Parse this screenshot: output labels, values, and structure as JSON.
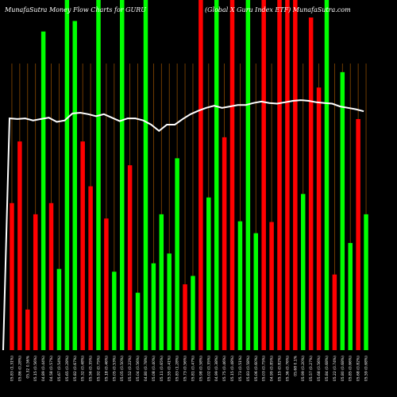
{
  "header": {
    "left_title": "MunafaSutra  Money Flow  Charts for GURU",
    "right_title": "(Global X  Guru  Index ETF) MunafaSutra.com"
  },
  "colors": {
    "background": "#000000",
    "up": "#00ff00",
    "down": "#ff0000",
    "vertical_line": "#8a4a00",
    "price_line": "#ffffff"
  },
  "chart_data": {
    "type": "bar",
    "title": "MunafaSutra  Money Flow  Charts for GURU",
    "subtitle": "(Global X  Guru  Index ETF) MunafaSutra.com",
    "ylim": [
      0,
      100
    ],
    "categories": [
      "05.83 (1.31%)",
      "05.86 (0.28%)",
      "05.32 0.56%",
      "05.15 (0.56%)",
      "04.89 (0.44%)",
      "04.58 (0.57%)",
      "05.67 (0.54%)",
      "05.65 (0.28%)",
      "05.82 (0.67%)",
      "05.32 (0.48%)",
      "05.56 (0.35%)",
      "05.92 (0.75%)",
      "05.18 (0.46%)",
      "05.05 (0.53%)",
      "05.05 (0.50%)",
      "05.52 (0.22%)",
      "05.04 (0.56%)",
      "04.80 (0.78%)",
      "05.08 (0.40%)",
      "05.11 (0.65%)",
      "05.55 (0.41%)",
      "05.83 (1.28%)",
      "05.73 (0.56%)",
      "05.81 (0.47%)",
      "05.98 (0.58%)",
      "05.02 (0.35%)",
      "04.99 (0.38%)",
      "05.75 (0.46%)",
      "05.15 (0.48%)",
      "05.73 (0.51%)",
      "05.83 (0.58%)",
      "05.06 (0.60%)",
      "05.03 (0.75%)",
      "04.99 (0.85%)",
      "05.15 (0.82%)",
      "05.36 (0.76%)",
      "05.68 0.1%",
      "05.99 (0.20%)",
      "05.57 (0.27%)",
      "05.68 (0.56%)",
      "05.84 (0.68%)",
      "05.22 (0.74%)",
      "05.80 (0.68%)",
      "05.85 (0.66%)",
      "05.68 (0.82%)",
      "05.59 (0.68%)"
    ],
    "bar_colors": [
      "red",
      "red",
      "red",
      "red",
      "green",
      "red",
      "green",
      "green",
      "green",
      "red",
      "red",
      "green",
      "red",
      "green",
      "green",
      "red",
      "green",
      "green",
      "green",
      "green",
      "green",
      "green",
      "red",
      "green",
      "red",
      "green",
      "green",
      "red",
      "red",
      "green",
      "green",
      "green",
      "red",
      "red",
      "red",
      "red",
      "red",
      "green",
      "red",
      "red",
      "green",
      "red",
      "green",
      "green",
      "red",
      "green"
    ],
    "values": [
      42,
      59.6,
      11.6,
      38.8,
      91,
      42,
      23.2,
      100,
      94,
      59.6,
      46.8,
      100,
      37.6,
      22.4,
      100,
      52.8,
      16.4,
      100,
      24.8,
      38.8,
      27.6,
      54.8,
      18.8,
      21.2,
      100,
      43.6,
      100,
      60.8,
      100,
      36.8,
      100,
      33.4,
      100,
      36.6,
      100,
      100,
      100,
      44.6,
      95,
      75,
      100,
      21.6,
      79.4,
      30.6,
      66,
      38.8
    ],
    "price_line": [
      66.2,
      66,
      66.2,
      65.6,
      66,
      66.4,
      65.2,
      65.6,
      67.6,
      67.8,
      67.4,
      66.8,
      67.4,
      66.4,
      65.4,
      66.2,
      66.2,
      65.6,
      64.4,
      62.6,
      64.4,
      64.4,
      66,
      67.4,
      68.4,
      69.2,
      69.8,
      69.2,
      69.6,
      70,
      70,
      70.6,
      71,
      70.6,
      70.4,
      70.8,
      71.2,
      71.4,
      71.2,
      70.8,
      70.6,
      70.4,
      69.6,
      69.2,
      68.8,
      68.2
    ]
  }
}
